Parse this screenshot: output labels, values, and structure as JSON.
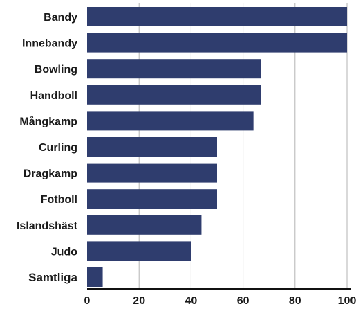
{
  "chart_data": {
    "type": "bar",
    "orientation": "horizontal",
    "categories": [
      "Bandy",
      "Innebandy",
      "Bowling",
      "Handboll",
      "Mångkamp",
      "Curling",
      "Dragkamp",
      "Fotboll",
      "Islandshäst",
      "Judo",
      "Samtliga"
    ],
    "values": [
      100,
      100,
      67,
      67,
      64,
      50,
      50,
      50,
      44,
      40,
      6
    ],
    "highlight_category": "Samtliga",
    "xlim": [
      0,
      100
    ],
    "xticks": [
      0,
      20,
      40,
      60,
      80,
      100
    ],
    "grid": "vertical",
    "title": "",
    "xlabel": "",
    "ylabel": ""
  },
  "colors": {
    "bar": "#2f3d6e",
    "grid": "#b3b3b3",
    "axis": "#111111",
    "text": "#1a1a1a"
  }
}
